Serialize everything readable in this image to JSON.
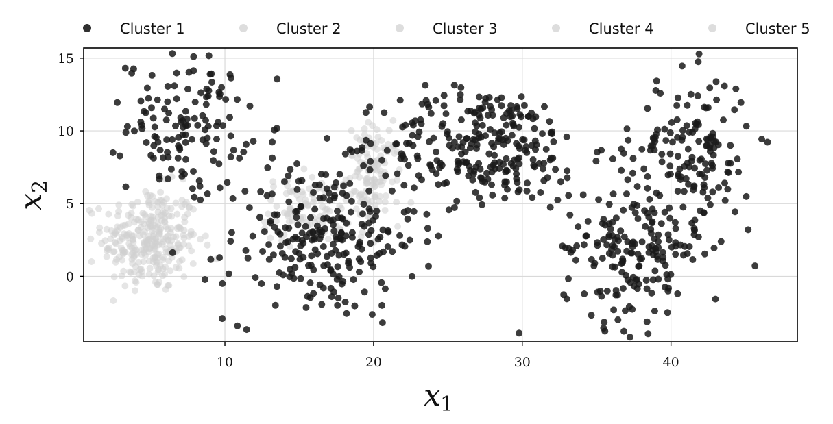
{
  "chart_data": {
    "type": "scatter",
    "title": "",
    "xlabel": {
      "base": "x",
      "sub": "1"
    },
    "ylabel": {
      "base": "x",
      "sub": "2"
    },
    "xlim": [
      0.5,
      48.5
    ],
    "ylim": [
      -4.5,
      15.7
    ],
    "xticks": [
      10,
      20,
      30,
      40
    ],
    "yticks": [
      0,
      5,
      10,
      15
    ],
    "grid": true,
    "legend_position": "top",
    "colors": {
      "highlight": "#1a1a1a",
      "muted": "#cfcfcf",
      "axis": "#000000",
      "grid": "#d9d9d9"
    },
    "series": [
      {
        "name": "Cluster 1",
        "highlighted": true,
        "groups": [
          {
            "cx": 7.5,
            "cy": 10.5,
            "sx": 2.0,
            "sy": 2.3,
            "n": 130
          },
          {
            "cx": 16.5,
            "cy": 2.5,
            "sx": 3.2,
            "sy": 2.8,
            "n": 250
          },
          {
            "cx": 27.5,
            "cy": 9.0,
            "sx": 3.4,
            "sy": 2.0,
            "n": 260
          },
          {
            "cx": 37.5,
            "cy": 2.0,
            "sx": 2.4,
            "sy": 2.8,
            "n": 200
          },
          {
            "cx": 41.5,
            "cy": 8.5,
            "sx": 2.0,
            "sy": 2.7,
            "n": 140
          }
        ]
      },
      {
        "name": "Cluster 2",
        "highlighted": false,
        "groups": [
          {
            "cx": 5.0,
            "cy": 2.5,
            "sx": 1.6,
            "sy": 1.8,
            "n": 300
          }
        ]
      },
      {
        "name": "Cluster 3",
        "highlighted": false,
        "groups": [
          {
            "cx": 15.5,
            "cy": 4.6,
            "sx": 1.5,
            "sy": 1.1,
            "n": 100
          }
        ]
      },
      {
        "name": "Cluster 4",
        "highlighted": false,
        "groups": [
          {
            "cx": 20.0,
            "cy": 7.0,
            "sx": 0.9,
            "sy": 1.7,
            "n": 130
          }
        ]
      },
      {
        "name": "Cluster 5",
        "highlighted": false,
        "groups": []
      }
    ]
  }
}
